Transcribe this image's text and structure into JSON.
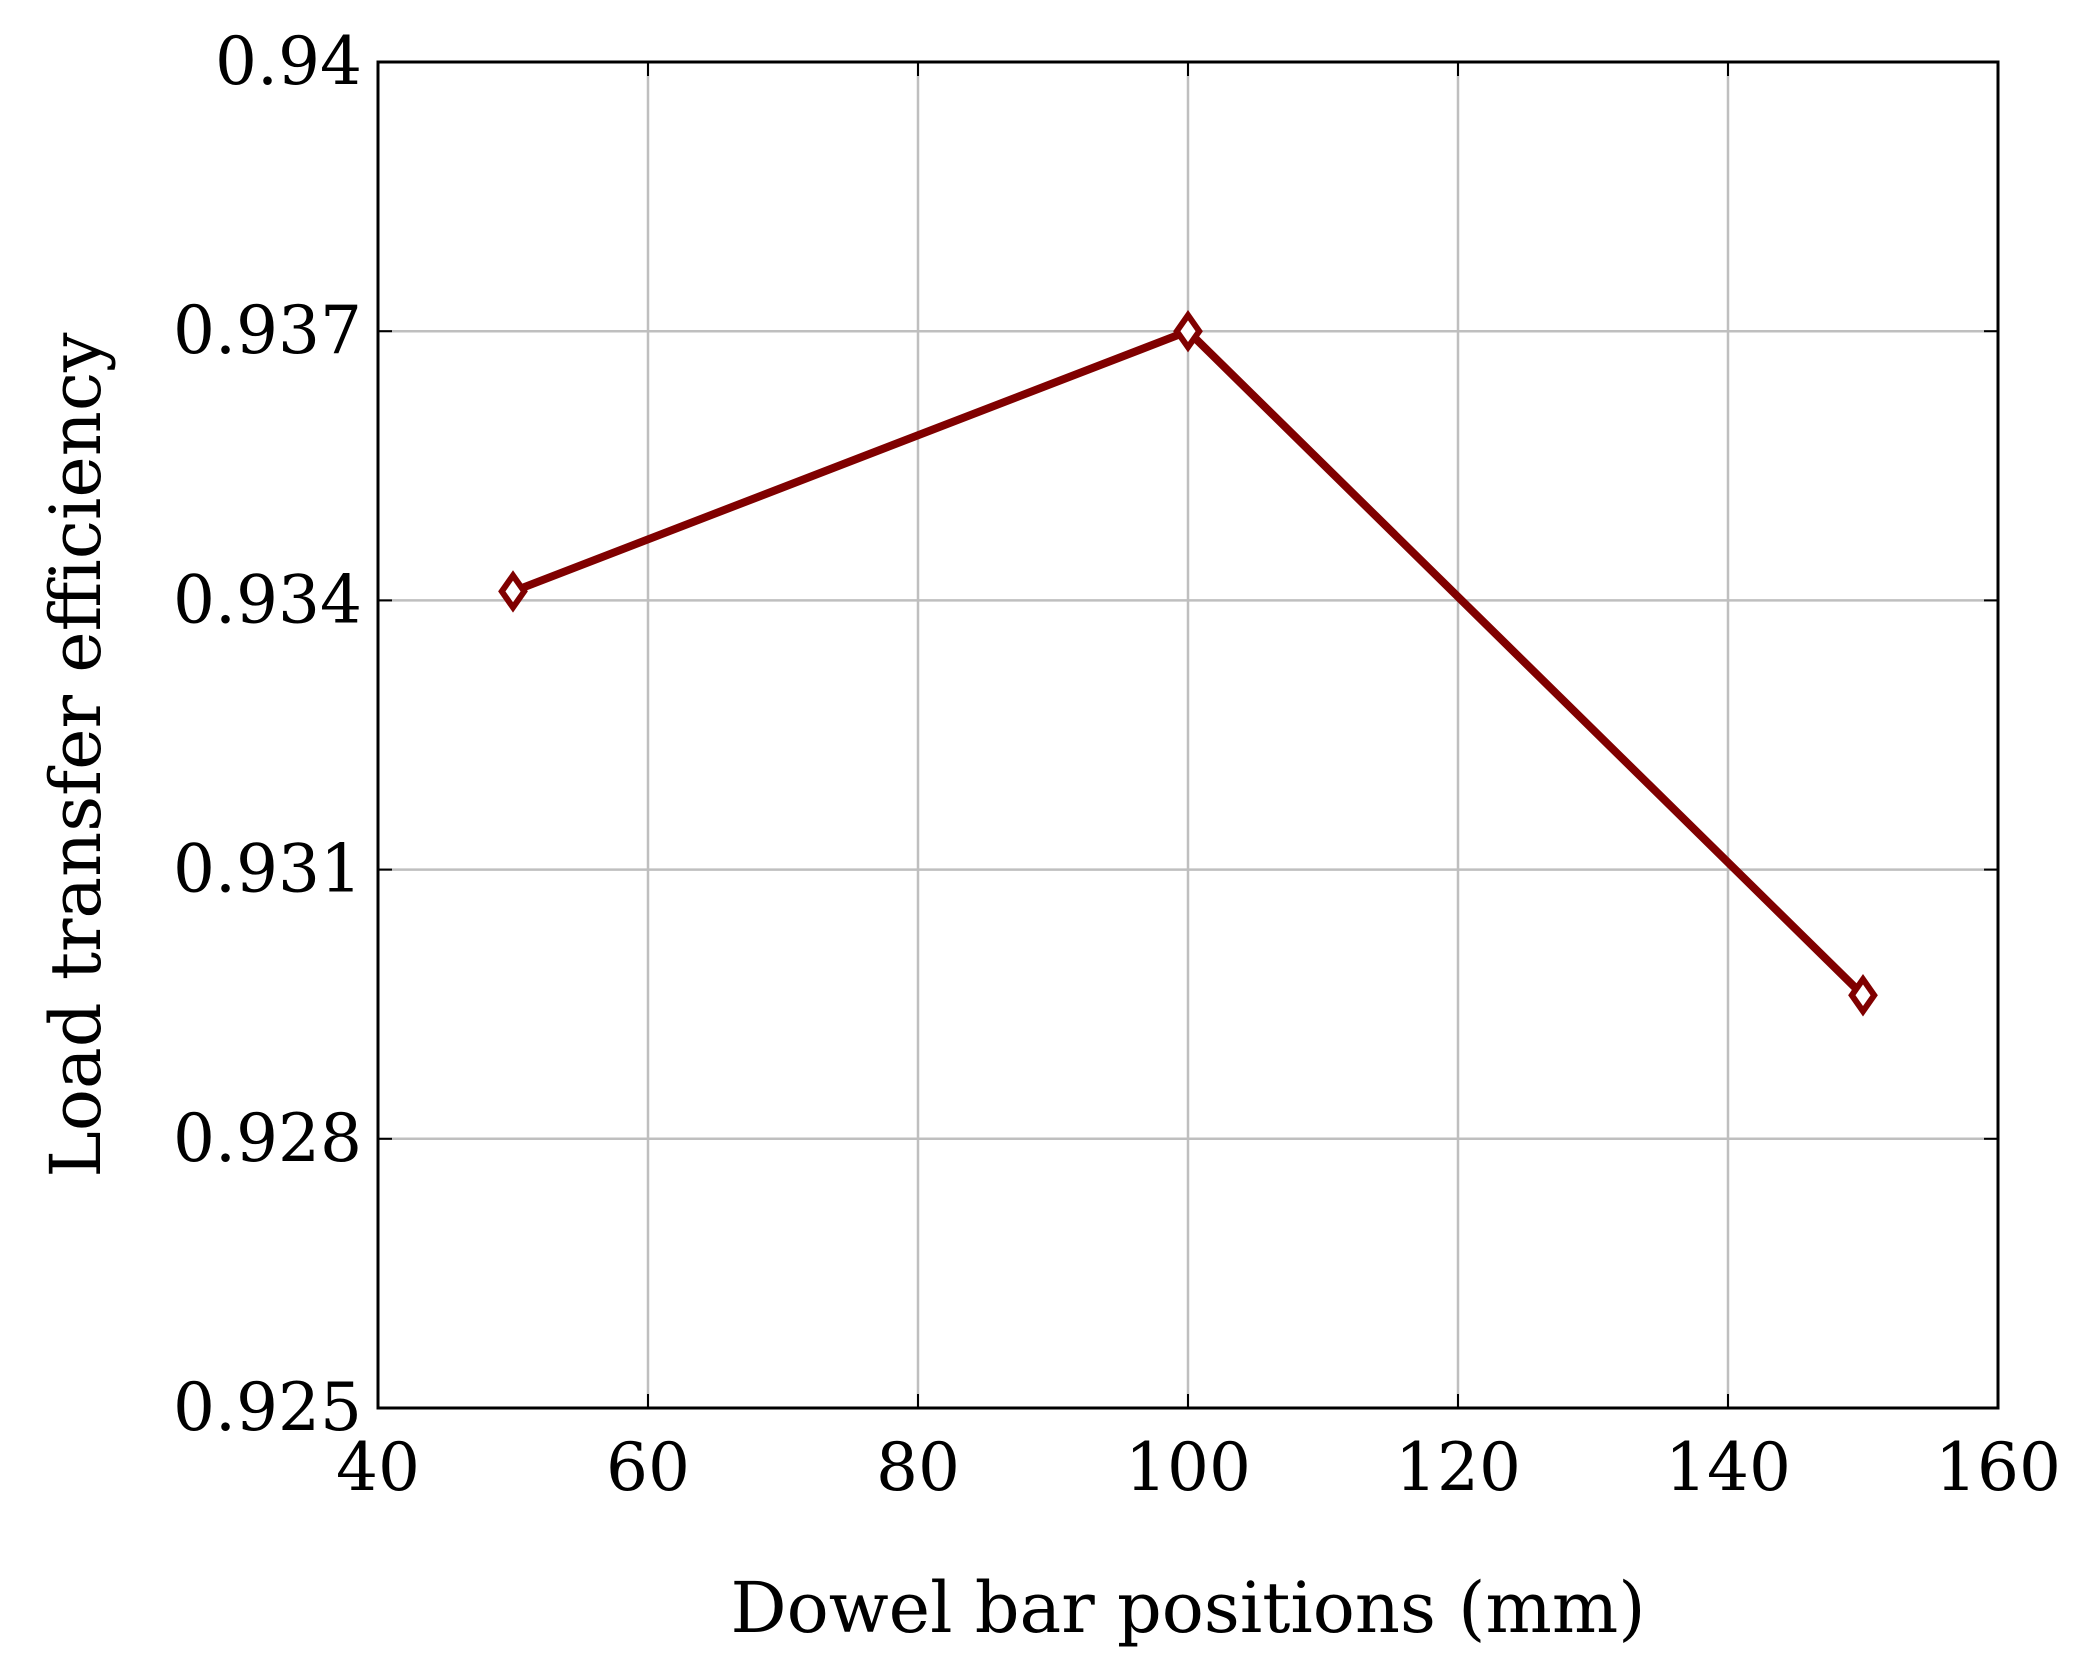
{
  "chart_data": {
    "type": "line",
    "title": "",
    "xlabel": "Dowel bar positions (mm)",
    "ylabel": "Load transfer efficiency",
    "xlim": [
      40,
      160
    ],
    "ylim": [
      0.925,
      0.94
    ],
    "xticks": [
      40,
      60,
      80,
      100,
      120,
      140,
      160
    ],
    "xtick_labels": [
      "40",
      "60",
      "80",
      "100",
      "120",
      "140",
      "160"
    ],
    "yticks": [
      0.925,
      0.928,
      0.931,
      0.934,
      0.937,
      0.94
    ],
    "ytick_labels": [
      "0.925",
      "0.928",
      "0.931",
      "0.934",
      "0.937",
      "0.94"
    ],
    "grid": true,
    "series": [
      {
        "marker": "diamond",
        "color": "#800000",
        "x": [
          50,
          100,
          150
        ],
        "y": [
          0.9341,
          0.937,
          0.9296
        ]
      }
    ],
    "colors": {
      "series": "#800000",
      "grid": "#bfbfbf",
      "axis": "#000000"
    }
  }
}
